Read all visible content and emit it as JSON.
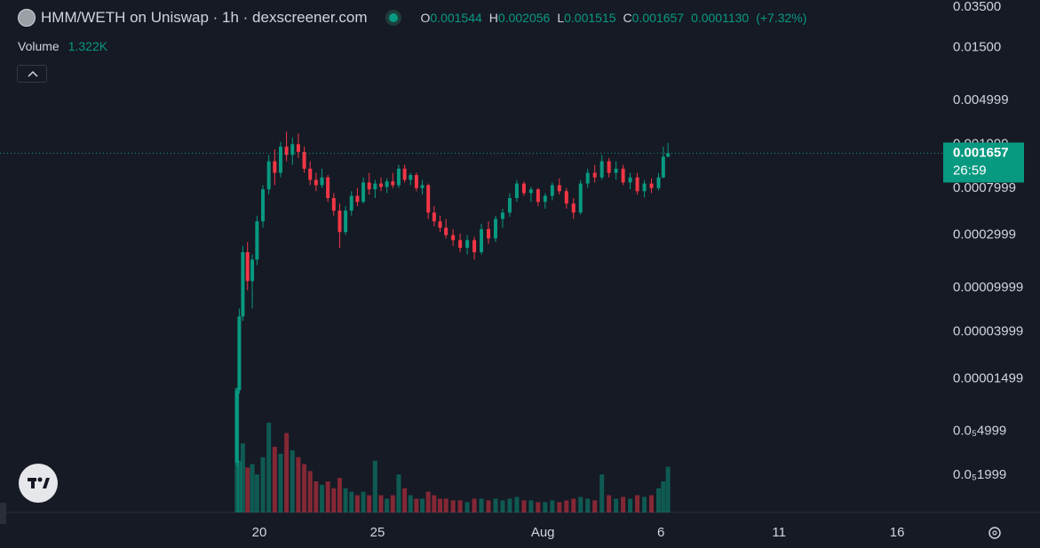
{
  "chart_data": {
    "type": "candlestick",
    "title": "HMM/WETH on Uniswap · 1h · dexscreener.com",
    "yscale": "log",
    "grid": false,
    "up_color": "#089981",
    "down_color": "#f23645",
    "ohlc_keys": [
      "O",
      "H",
      "L",
      "C"
    ],
    "change": {
      "value": 0.000113,
      "label": "0.0001130"
    },
    "change_percent": "(+7.32%)",
    "volume_title": "Volume",
    "volume_readout": "1.322K",
    "countdown": "26:59",
    "xlim": [
      9.02,
      48.95
    ],
    "xticks": [
      20,
      {
        "value": 25,
        "label": "25"
      },
      {
        "value": 32,
        "label": "Aug"
      },
      {
        "value": 37,
        "label": "6"
      },
      {
        "value": 42,
        "label": "11"
      },
      {
        "value": 47,
        "label": "16"
      }
    ],
    "ylim": [
      9.2e-07,
      0.0405
    ],
    "yticks": [
      {
        "value": 0.035,
        "label": "0.03500"
      },
      {
        "value": 0.015,
        "label": "0.01500"
      },
      0.004999,
      0.001999,
      0.0007999,
      0.0002999,
      9.999e-05,
      3.999e-05,
      1.499e-05,
      {
        "value": 4.999e-06,
        "label": "0.0₅4999"
      },
      {
        "value": 1.999e-06,
        "label": "0.0₅1999"
      }
    ],
    "x": [
      19.05,
      19.15,
      19.3,
      19.5,
      19.7,
      19.9,
      20.15,
      20.4,
      20.65,
      20.9,
      21.15,
      21.4,
      21.65,
      21.9,
      22.15,
      22.4,
      22.65,
      22.9,
      23.15,
      23.4,
      23.65,
      23.9,
      24.15,
      24.4,
      24.65,
      24.9,
      25.15,
      25.4,
      25.65,
      25.9,
      26.15,
      26.4,
      26.65,
      26.9,
      27.15,
      27.4,
      27.65,
      27.9,
      28.2,
      28.5,
      28.8,
      29.1,
      29.4,
      29.7,
      30.0,
      30.3,
      30.6,
      30.9,
      31.2,
      31.5,
      31.8,
      32.1,
      32.4,
      32.7,
      33.0,
      33.3,
      33.6,
      33.9,
      34.2,
      34.5,
      34.8,
      35.1,
      35.4,
      35.7,
      36.0,
      36.3,
      36.6,
      36.9,
      37.1,
      37.3
    ],
    "open": [
      2.6e-06,
      1.18e-05,
      5.5e-05,
      0.00021,
      0.000115,
      0.00018,
      0.0004,
      0.00078,
      0.0014,
      0.0011,
      0.0019,
      0.0016,
      0.002,
      0.0017,
      0.0012,
      0.00095,
      0.00085,
      0.001,
      0.00065,
      0.0005,
      0.00032,
      0.0005,
      0.00068,
      0.0006,
      0.0009,
      0.00078,
      0.00088,
      0.00082,
      0.00092,
      0.00085,
      0.0012,
      0.00095,
      0.00105,
      0.0008,
      0.00085,
      0.00048,
      0.0004,
      0.00035,
      0.0003,
      0.00027,
      0.00023,
      0.00027,
      0.00021,
      0.00034,
      0.00028,
      0.00042,
      0.00048,
      0.00065,
      0.00088,
      0.00072,
      0.00078,
      0.0006,
      0.00068,
      0.00085,
      0.00075,
      0.00058,
      0.00048,
      0.00088,
      0.0011,
      0.001,
      0.0014,
      0.0011,
      0.0012,
      0.0009,
      0.001,
      0.00075,
      0.00088,
      0.0008,
      0.001,
      0.001544
    ],
    "high": [
      1.25e-05,
      6.5e-05,
      0.00024,
      0.00026,
      0.0002,
      0.00045,
      0.00085,
      0.0016,
      0.0018,
      0.0021,
      0.0026,
      0.0023,
      0.0025,
      0.0019,
      0.0014,
      0.0011,
      0.0012,
      0.00105,
      0.00072,
      0.00058,
      0.00055,
      0.00075,
      0.0008,
      0.001,
      0.0011,
      0.00095,
      0.001,
      0.00098,
      0.0011,
      0.0013,
      0.0013,
      0.0011,
      0.0011,
      0.00095,
      0.00088,
      0.00055,
      0.00045,
      0.00042,
      0.00034,
      0.00031,
      0.0003,
      0.00029,
      0.00038,
      0.0004,
      0.00045,
      0.00052,
      0.00072,
      0.00095,
      0.00092,
      0.00082,
      0.0008,
      0.00072,
      0.0009,
      0.00098,
      0.0008,
      0.00065,
      0.00095,
      0.0012,
      0.0013,
      0.0016,
      0.0015,
      0.0014,
      0.0013,
      0.0011,
      0.0011,
      0.00095,
      0.00098,
      0.0011,
      0.0019,
      0.002056
    ],
    "low": [
      2.4e-06,
      1.1e-05,
      5e-05,
      9.5e-05,
      6.5e-05,
      0.00016,
      0.00035,
      0.0007,
      0.00085,
      0.001,
      0.0014,
      0.0013,
      0.0015,
      0.0011,
      0.00085,
      0.00075,
      0.0008,
      0.0006,
      0.00045,
      0.00023,
      0.0003,
      0.00045,
      0.00055,
      0.00058,
      0.0007,
      0.00065,
      0.00075,
      0.00072,
      0.0008,
      0.0008,
      0.0009,
      0.00085,
      0.00075,
      0.0007,
      0.00042,
      0.00036,
      0.00032,
      0.00028,
      0.00024,
      0.00021,
      0.0002,
      0.00018,
      0.0002,
      0.00025,
      0.00026,
      0.00035,
      0.00044,
      0.0006,
      0.00068,
      0.0006,
      0.00055,
      0.00052,
      0.00062,
      0.0007,
      0.00052,
      0.00042,
      0.00046,
      0.0008,
      0.0009,
      0.00095,
      0.001,
      0.00095,
      0.00085,
      0.00078,
      0.0007,
      0.00066,
      0.00072,
      0.00076,
      0.00098,
      0.001515
    ],
    "close": [
      1.18e-05,
      5.5e-05,
      0.00021,
      0.000115,
      0.00018,
      0.0004,
      0.00078,
      0.0014,
      0.0011,
      0.0019,
      0.0016,
      0.002,
      0.0017,
      0.0012,
      0.00095,
      0.00085,
      0.001,
      0.00065,
      0.0005,
      0.00032,
      0.0005,
      0.00068,
      0.0006,
      0.0009,
      0.00078,
      0.00088,
      0.00082,
      0.00092,
      0.00085,
      0.0012,
      0.00095,
      0.00105,
      0.0008,
      0.00085,
      0.00048,
      0.0004,
      0.00035,
      0.0003,
      0.00027,
      0.00023,
      0.00027,
      0.00021,
      0.00034,
      0.00028,
      0.00042,
      0.00048,
      0.00065,
      0.00088,
      0.00072,
      0.00078,
      0.0006,
      0.00068,
      0.00085,
      0.00075,
      0.00058,
      0.00048,
      0.00088,
      0.0011,
      0.001,
      0.0014,
      0.0011,
      0.0012,
      0.0009,
      0.001,
      0.00075,
      0.00088,
      0.0008,
      0.001,
      0.001544,
      0.001657
    ],
    "volume": [
      3600,
      1500,
      2000,
      1300,
      1400,
      1100,
      1600,
      2600,
      1900,
      1700,
      2300,
      1800,
      1600,
      1400,
      1200,
      900,
      800,
      900,
      700,
      1000,
      700,
      600,
      500,
      600,
      500,
      1500,
      500,
      400,
      500,
      1100,
      700,
      500,
      400,
      400,
      600,
      500,
      400,
      400,
      350,
      350,
      300,
      400,
      400,
      350,
      400,
      350,
      400,
      450,
      350,
      350,
      300,
      300,
      350,
      300,
      350,
      400,
      450,
      400,
      350,
      1100,
      500,
      400,
      450,
      400,
      500,
      450,
      500,
      700,
      900,
      1322
    ]
  }
}
